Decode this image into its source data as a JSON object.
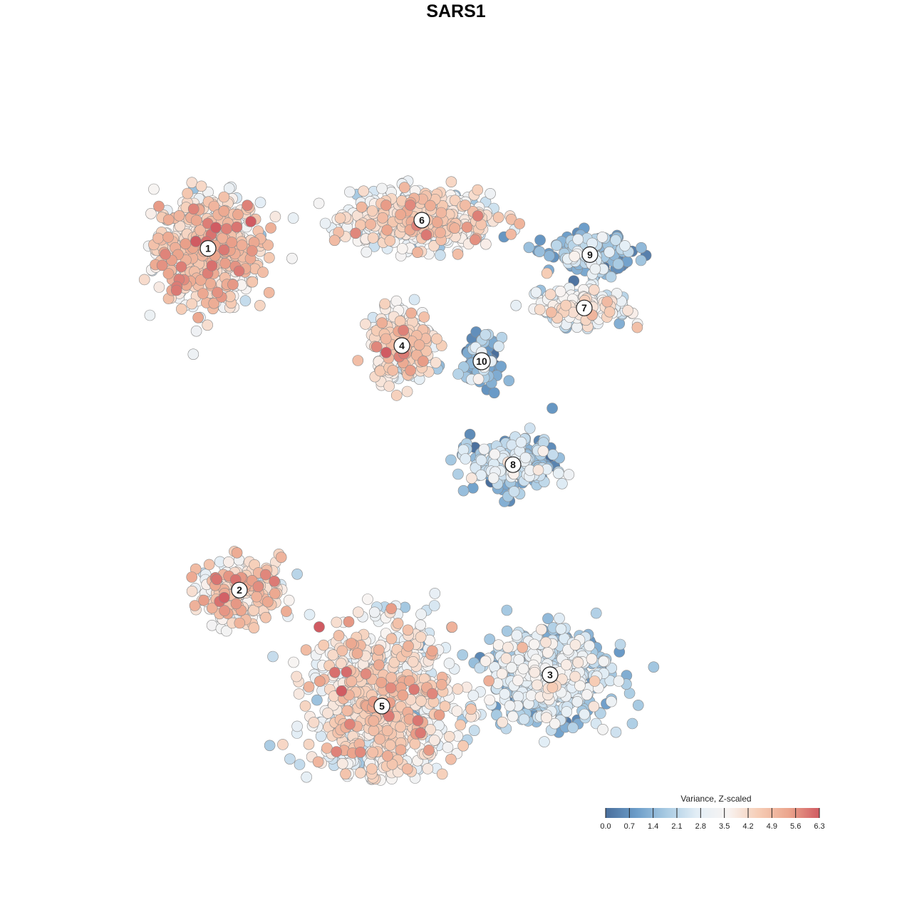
{
  "chart_data": {
    "type": "scatter",
    "title": "SARS1",
    "xlabel": "",
    "ylabel": "",
    "grid": false,
    "legend_placement": "bottom-right",
    "colorbar": {
      "title": "Variance, Z-scaled",
      "ticks": [
        "0.0",
        "0.7",
        "1.4",
        "2.1",
        "2.8",
        "3.5",
        "4.2",
        "4.9",
        "5.6",
        "6.3"
      ],
      "min": 0.0,
      "max": 6.3,
      "colors": [
        "#4a6f9c",
        "#6c9dc9",
        "#a9cbe3",
        "#e3eef6",
        "#f8f4f2",
        "#f6cdb6",
        "#eba58d",
        "#d05b62"
      ]
    },
    "clusters": [
      {
        "label": "1",
        "x": -8.7,
        "y": 5.6,
        "spread_x": 1.5,
        "spread_y": 1.4,
        "mean": 3.9,
        "n": 700
      },
      {
        "label": "6",
        "x": -1.2,
        "y": 6.5,
        "spread_x": 2.0,
        "spread_y": 0.7,
        "mean": 3.4,
        "n": 600
      },
      {
        "label": "9",
        "x": 4.7,
        "y": 5.4,
        "spread_x": 1.2,
        "spread_y": 0.5,
        "mean": 1.3,
        "n": 160
      },
      {
        "label": "7",
        "x": 4.5,
        "y": 3.7,
        "spread_x": 1.3,
        "spread_y": 0.5,
        "mean": 2.9,
        "n": 220
      },
      {
        "label": "4",
        "x": -1.9,
        "y": 2.5,
        "spread_x": 0.9,
        "spread_y": 0.9,
        "mean": 3.6,
        "n": 300
      },
      {
        "label": "10",
        "x": 0.9,
        "y": 2.0,
        "spread_x": 0.5,
        "spread_y": 0.6,
        "mean": 1.0,
        "n": 110
      },
      {
        "label": "8",
        "x": 2.0,
        "y": -1.3,
        "spread_x": 1.2,
        "spread_y": 0.7,
        "mean": 1.6,
        "n": 260
      },
      {
        "label": "2",
        "x": -7.6,
        "y": -5.3,
        "spread_x": 1.2,
        "spread_y": 0.8,
        "mean": 4.0,
        "n": 230
      },
      {
        "label": "3",
        "x": 3.3,
        "y": -8.0,
        "spread_x": 1.7,
        "spread_y": 1.2,
        "mean": 2.0,
        "n": 650
      },
      {
        "label": "5",
        "x": -2.6,
        "y": -9.0,
        "spread_x": 2.1,
        "spread_y": 2.2,
        "mean": 3.6,
        "n": 900
      }
    ]
  }
}
